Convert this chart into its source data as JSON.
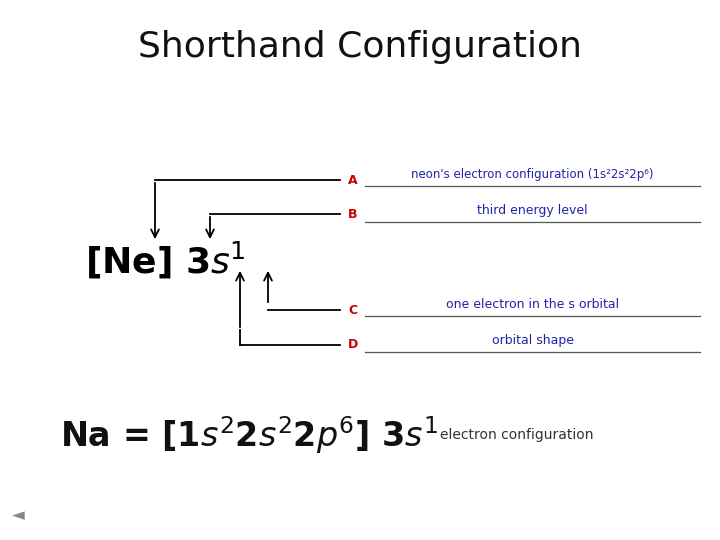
{
  "title": "Shorthand Configuration",
  "title_fontsize": 26,
  "title_color": "#111111",
  "label_color": "#cc0000",
  "text_color": "#2222aa",
  "arrow_color": "#000000",
  "line_color": "#333333",
  "text_A": "neon's electron configuration (1s²2s²2p⁶)",
  "text_B": "third energy level",
  "text_C": "one electron in the s orbital",
  "text_D": "orbital shape",
  "formula_note": "electron configuration",
  "formula_note_color": "#333333"
}
